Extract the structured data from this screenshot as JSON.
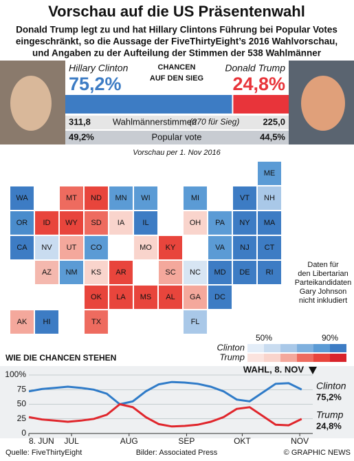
{
  "header": {
    "title": "Vorschau auf die US Präsentenwahl",
    "subtitle": [
      "Donald Trump legt zu und hat Hillary Clintons Führung bei Popular Votes",
      "eingeschränkt, so die Aussage der FiveThirtyEight’s 2016 Wahlvorschau,",
      "und Angaben zu der Aufteilung der Stimmen der 538 Wahlmänner"
    ]
  },
  "summary": {
    "chance_label": [
      "CHANCEN",
      "AUF DEN SIEG"
    ],
    "electoral_text": "Wahlmännerstimmen",
    "electoral_note": "(270 für Sieg)",
    "popular_text": "Popular vote",
    "candidates": [
      {
        "name": "Hillary Clinton",
        "color": "#3d7cc4",
        "chance": 75.2,
        "chance_label": "75,2%",
        "electoral": 311.8,
        "electoral_label": "311,8",
        "popular": 49.2,
        "popular_label": "49,2%"
      },
      {
        "name": "Donald Trump",
        "color": "#e8343a",
        "chance": 24.8,
        "chance_label": "24,8%",
        "electoral": 225.0,
        "electoral_label": "225,0",
        "popular": 44.5,
        "popular_label": "44,5%"
      }
    ]
  },
  "map": {
    "date_label": "Vorschau per 1. Nov 2016",
    "note": [
      "Daten für",
      "den Libertarian",
      "Parteikandidaten",
      "Gary Johnson",
      "nicht inkludiert"
    ],
    "states": [
      {
        "label": "ME",
        "color": "#5b9bd5"
      },
      {
        "label": "WA",
        "color": "#3d7cc4"
      },
      {
        "label": "MT",
        "color": "#ee6b5f"
      },
      {
        "label": "ND",
        "color": "#e8453c"
      },
      {
        "label": "MN",
        "color": "#5b9bd5"
      },
      {
        "label": "WI",
        "color": "#5b9bd5"
      },
      {
        "label": "MI",
        "color": "#5b9bd5"
      },
      {
        "label": "VT",
        "color": "#3d7cc4"
      },
      {
        "label": "NH",
        "color": "#a9c8e8"
      },
      {
        "label": "OR",
        "color": "#4a8ccc"
      },
      {
        "label": "ID",
        "color": "#e8453c"
      },
      {
        "label": "WY",
        "color": "#e8453c"
      },
      {
        "label": "SD",
        "color": "#ee6b5f"
      },
      {
        "label": "IA",
        "color": "#f9d4cc"
      },
      {
        "label": "IL",
        "color": "#3d7cc4"
      },
      {
        "label": "OH",
        "color": "#f9d4cc"
      },
      {
        "label": "PA",
        "color": "#5b9bd5"
      },
      {
        "label": "NY",
        "color": "#3d7cc4"
      },
      {
        "label": "MA",
        "color": "#3d7cc4"
      },
      {
        "label": "CA",
        "color": "#3d7cc4"
      },
      {
        "label": "NV",
        "color": "#c9dcf0"
      },
      {
        "label": "UT",
        "color": "#f4a89c"
      },
      {
        "label": "CO",
        "color": "#5b9bd5"
      },
      {
        "label": "MO",
        "color": "#f9d4cc"
      },
      {
        "label": "KY",
        "color": "#e8453c"
      },
      {
        "label": "VA",
        "color": "#5b9bd5"
      },
      {
        "label": "NJ",
        "color": "#3d7cc4"
      },
      {
        "label": "CT",
        "color": "#3d7cc4"
      },
      {
        "label": "AZ",
        "color": "#f4b8ae"
      },
      {
        "label": "NM",
        "color": "#5b9bd5"
      },
      {
        "label": "KS",
        "color": "#f9d4cc"
      },
      {
        "label": "AR",
        "color": "#e8453c"
      },
      {
        "label": "NC",
        "color": "#d7e5f3"
      },
      {
        "label": "SC",
        "color": "#f4a89c"
      },
      {
        "label": "MD",
        "color": "#3d7cc4"
      },
      {
        "label": "DE",
        "color": "#3d7cc4"
      },
      {
        "label": "RI",
        "color": "#3d7cc4"
      },
      {
        "label": "OK",
        "color": "#e8453c"
      },
      {
        "label": "LA",
        "color": "#e8453c"
      },
      {
        "label": "MS",
        "color": "#e8453c"
      },
      {
        "label": "AL",
        "color": "#e8453c"
      },
      {
        "label": "GA",
        "color": "#f4a89c"
      },
      {
        "label": "DC",
        "color": "#3d7cc4"
      },
      {
        "label": "AK",
        "color": "#f4a89c"
      },
      {
        "label": "HI",
        "color": "#3d7cc4"
      },
      {
        "label": "TX",
        "color": "#ee6b5f"
      },
      {
        "label": "FL",
        "color": "#a9c8e8"
      }
    ],
    "legend": {
      "low": "50%",
      "high": "90%",
      "clinton": "Clinton",
      "trump": "Trump",
      "clinton_colors": [
        "#e3edf8",
        "#c9dcf0",
        "#a9c8e8",
        "#7fb0de",
        "#5b9bd5",
        "#3d7cc4"
      ],
      "trump_colors": [
        "#fbe3de",
        "#f9d4cc",
        "#f4a89c",
        "#ee6b5f",
        "#e8453c",
        "#d8232a"
      ]
    }
  },
  "chart_data": {
    "type": "line",
    "title": "WIE DIE CHANCEN STEHEN",
    "marker_label": "WAHL, 8. NOV",
    "x": [
      0,
      7,
      14,
      21,
      28,
      35,
      42,
      49,
      56,
      63,
      70,
      77,
      84,
      91,
      98,
      105,
      112,
      119,
      126,
      133,
      140,
      147
    ],
    "xlim": [
      0,
      153
    ],
    "xticks": [
      {
        "value": 0,
        "label": "8. JUN"
      },
      {
        "value": 23,
        "label": "JUL"
      },
      {
        "value": 54,
        "label": "AUG"
      },
      {
        "value": 85,
        "label": "SEP"
      },
      {
        "value": 115,
        "label": "OKT"
      },
      {
        "value": 146,
        "label": "NOV"
      }
    ],
    "ylim": [
      0,
      100
    ],
    "yticks": [
      0,
      25,
      50,
      75,
      {
        "value": 100,
        "label": "100%"
      }
    ],
    "grid": true,
    "series": [
      {
        "name": "Clinton",
        "color": "#2f7bc8",
        "end_label": "75,2%",
        "values": [
          72,
          76,
          78,
          80,
          78,
          75,
          68,
          50,
          55,
          72,
          84,
          88,
          87,
          85,
          80,
          72,
          58,
          55,
          70,
          85,
          86,
          75.2
        ]
      },
      {
        "name": "Trump",
        "color": "#e0262c",
        "end_label": "24,8%",
        "values": [
          28,
          24,
          22,
          20,
          22,
          25,
          32,
          50,
          45,
          28,
          16,
          12,
          13,
          15,
          20,
          28,
          42,
          45,
          30,
          15,
          14,
          24.8
        ]
      }
    ]
  },
  "footer": {
    "source": "Quelle: FiveThirtyEight",
    "images": "Bilder: Associated Press",
    "credit": "© GRAPHIC NEWS"
  }
}
